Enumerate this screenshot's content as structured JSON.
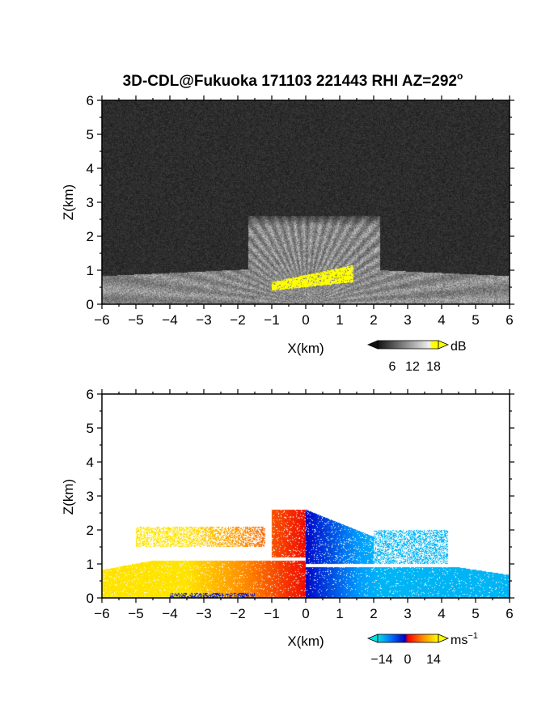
{
  "figure": {
    "title_main": "3D-CDL@Fukuoka 171103 221443 RHI AZ=292",
    "title_degree": "o"
  },
  "chart_data": [
    {
      "type": "heatmap",
      "variable": "reflectivity",
      "xlabel": "X(km)",
      "ylabel": "Z(km)",
      "xlim": [
        -6,
        6
      ],
      "ylim": [
        0,
        6
      ],
      "xticks": [
        "−6",
        "−5",
        "−4",
        "−3",
        "−2",
        "−1",
        "0",
        "1",
        "2",
        "3",
        "4",
        "5",
        "6"
      ],
      "yticks": [
        "0",
        "1",
        "2",
        "3",
        "4",
        "5",
        "6"
      ],
      "colorbar": {
        "unit": "dB",
        "ticks": [
          "6",
          "12",
          "18"
        ],
        "range": [
          0,
          20
        ],
        "colors": [
          "#111111",
          "#ffffff",
          "#ffff00"
        ]
      },
      "features": {
        "background_dB": 2,
        "echo_band_top_km": 1.1,
        "cone_top_km": 2.6,
        "cone_x_range_km": [
          -1.7,
          2.2
        ],
        "high_echo_patch": {
          "x_range_km": [
            -1.0,
            1.4
          ],
          "z_range_km": [
            0.4,
            1.0
          ]
        }
      }
    },
    {
      "type": "heatmap",
      "variable": "doppler_velocity",
      "xlabel": "X(km)",
      "ylabel": "Z(km)",
      "xlim": [
        -6,
        6
      ],
      "ylim": [
        0,
        6
      ],
      "xticks": [
        "−6",
        "−5",
        "−4",
        "−3",
        "−2",
        "−1",
        "0",
        "1",
        "2",
        "3",
        "4",
        "5",
        "6"
      ],
      "yticks": [
        "0",
        "1",
        "2",
        "3",
        "4",
        "5",
        "6"
      ],
      "colorbar": {
        "unit": "ms",
        "unit_exp": "−1",
        "ticks": [
          "−14",
          "0",
          "14"
        ],
        "range": [
          -14,
          14
        ],
        "colors": [
          "#00e0e0",
          "#0060ff",
          "#0000c0",
          "#ff0000",
          "#ff8000",
          "#ffff00"
        ]
      },
      "features": {
        "negative_side_ms": -8,
        "positive_side_ms": 8,
        "echo_top_left_km": 1.1,
        "echo_top_right_km": 0.9,
        "upper_layer_top_km": 2.6,
        "upper_layer_x_range_km": [
          -1.0,
          2.0
        ],
        "sparse_layer_left_km": [
          -5.0,
          -1.2
        ],
        "sparse_layer_right_km": [
          2.0,
          4.2
        ]
      }
    }
  ]
}
